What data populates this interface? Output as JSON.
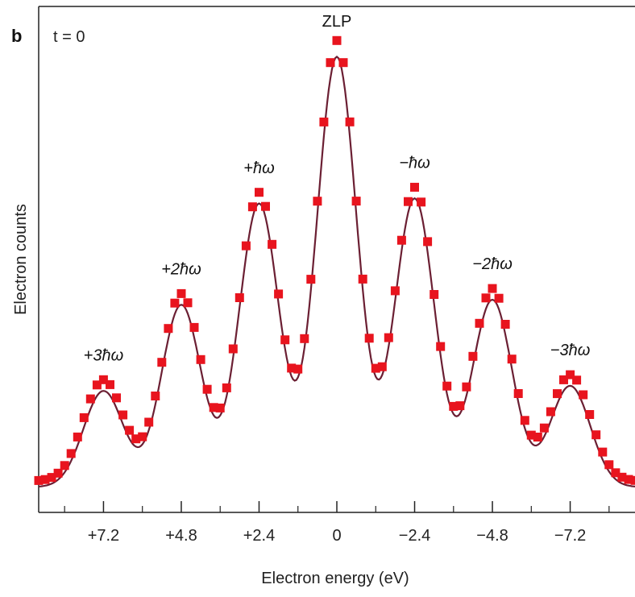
{
  "panel_label": "b",
  "time_label": "t = 0",
  "colors": {
    "data_marker": "#e8141e",
    "fit_line": "#6b1f33",
    "axis": "#222222"
  },
  "chart_data": {
    "type": "scatter",
    "xlabel": "Electron energy (eV)",
    "ylabel": "Electron counts",
    "x_reversed": true,
    "xlim": [
      9.2,
      -9.2
    ],
    "ylim": [
      0,
      1
    ],
    "y_ticks_labeled": false,
    "grid": false,
    "x_ticks": [
      {
        "value": 7.2,
        "label": "+7.2"
      },
      {
        "value": 4.8,
        "label": "+4.8"
      },
      {
        "value": 2.4,
        "label": "+2.4"
      },
      {
        "value": 0,
        "label": "0"
      },
      {
        "value": -2.4,
        "label": "−2.4"
      },
      {
        "value": -4.8,
        "label": "−4.8"
      },
      {
        "value": -7.2,
        "label": "−7.2"
      }
    ],
    "peaks": [
      {
        "label": "+3ħω",
        "x": 7.2,
        "y": 0.24
      },
      {
        "label": "+2ħω",
        "x": 4.8,
        "y": 0.41
      },
      {
        "label": "+ħω",
        "x": 2.4,
        "y": 0.61
      },
      {
        "label": "ZLP",
        "x": 0,
        "y": 0.9
      },
      {
        "label": "−ħω",
        "x": -2.4,
        "y": 0.62
      },
      {
        "label": "−2ħω",
        "x": -4.8,
        "y": 0.42
      },
      {
        "label": "−3ħω",
        "x": -7.2,
        "y": 0.25
      }
    ],
    "series": [
      {
        "kind": "markers",
        "color": "#e8141e"
      },
      {
        "kind": "line",
        "color": "#6b1f33"
      }
    ]
  }
}
